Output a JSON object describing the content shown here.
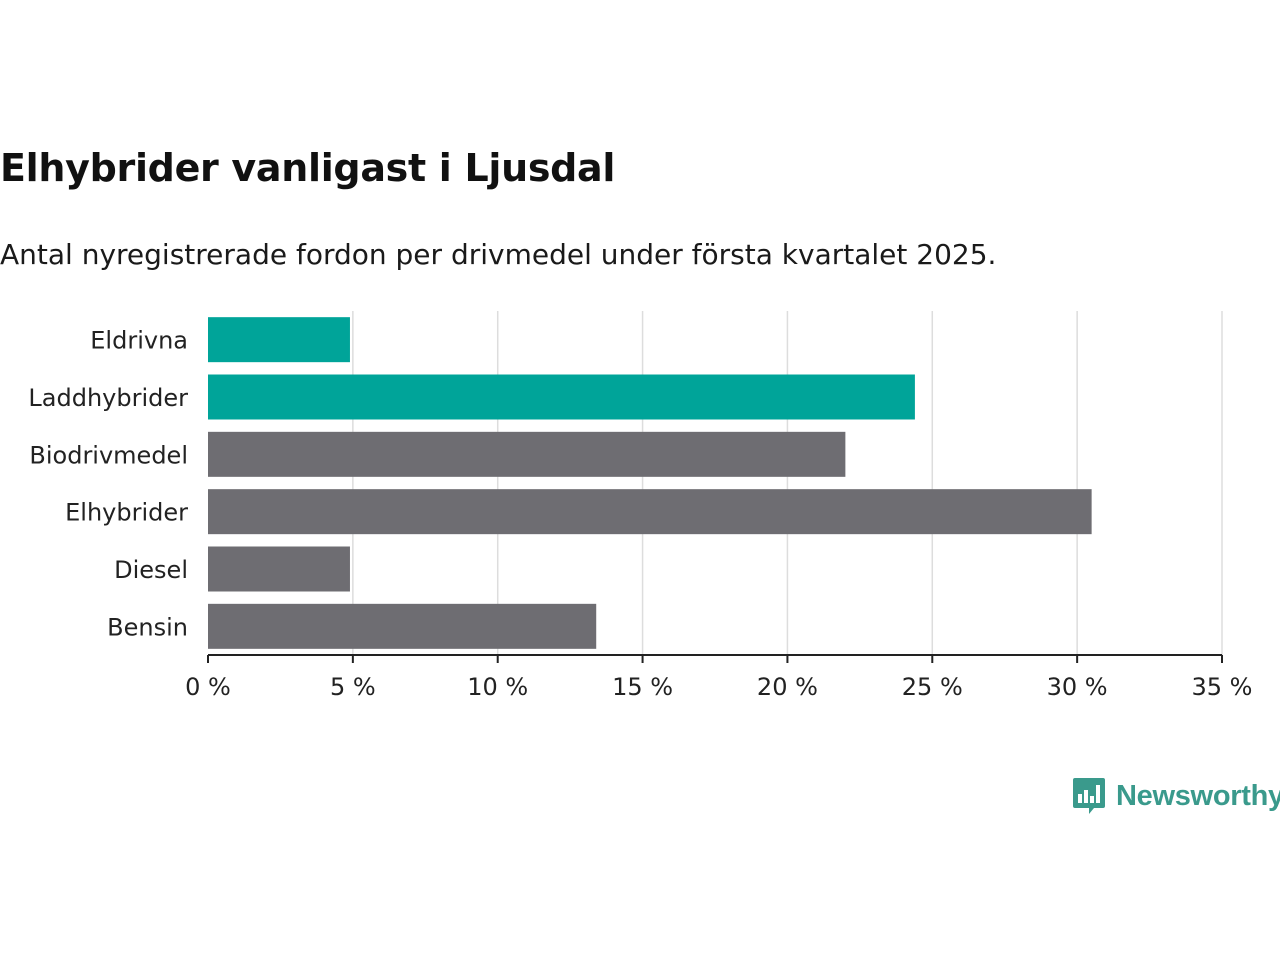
{
  "title": "Elhybrider vanligast i Ljusdal",
  "subtitle": "Antal nyregistrerade fordon per drivmedel under första kvartalet 2025.",
  "brand": {
    "name": "Newsworthy",
    "color": "#3a9a8c",
    "icon": "newsworthy-logo-icon"
  },
  "colors": {
    "highlight": "#00a499",
    "default": "#6e6d72",
    "grid": "#dddddd",
    "axis": "#222222"
  },
  "chart_data": {
    "type": "bar",
    "orientation": "horizontal",
    "categories": [
      "Eldrivna",
      "Laddhybrider",
      "Biodrivmedel",
      "Elhybrider",
      "Diesel",
      "Bensin"
    ],
    "values": [
      4.9,
      24.4,
      22.0,
      30.5,
      4.9,
      13.4
    ],
    "highlighted": [
      "Eldrivna",
      "Laddhybrider"
    ],
    "xlim": [
      0,
      35
    ],
    "xticks": [
      0,
      5,
      10,
      15,
      20,
      25,
      30,
      35
    ],
    "xtick_labels": [
      "0 %",
      "5 %",
      "10 %",
      "15 %",
      "20 %",
      "25 %",
      "30 %",
      "35 %"
    ],
    "grid": true,
    "xlabel": "",
    "ylabel": ""
  }
}
